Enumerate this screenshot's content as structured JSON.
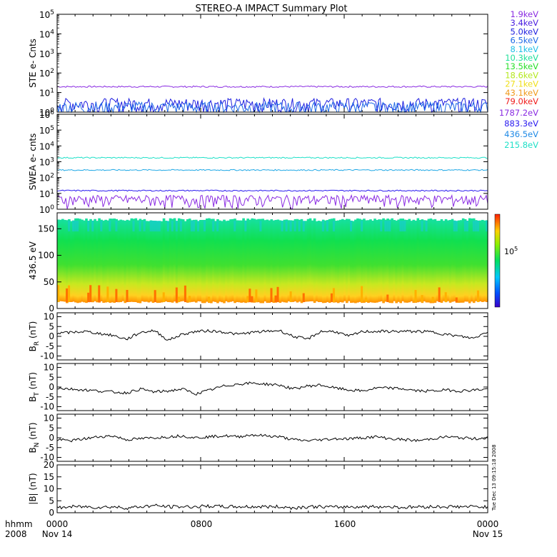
{
  "title": "STEREO-A IMPACT Summary Plot",
  "stamp": "Tue Dec 13 09:15:18 2008",
  "colors": {
    "purple": "#8a2be2",
    "blue": "#2a1bf0",
    "cyan": "#1fc0e6",
    "teal": "#1fe0c8",
    "bfield": "#000000"
  },
  "x_axis": {
    "label_line1": "hhmm",
    "label_line2": "2008",
    "ticks": [
      {
        "time": "0000",
        "date": "Nov 14"
      },
      {
        "time": "0800",
        "date": ""
      },
      {
        "time": "1600",
        "date": ""
      },
      {
        "time": "0000",
        "date": "Nov 15"
      }
    ]
  },
  "chart_data": [
    {
      "type": "line",
      "ylabel": "STE e- Cnts",
      "yscale": "log",
      "yticks": [
        "10^0",
        "10^1",
        "10^2",
        "10^3",
        "10^4",
        "10^5"
      ],
      "ylim": [
        1,
        100000
      ],
      "legend_placement": "right",
      "legend": [
        {
          "label": "1.9keV",
          "color": "#8a2be2"
        },
        {
          "label": "3.4keV",
          "color": "#4b1fe0"
        },
        {
          "label": "5.0keV",
          "color": "#1f1fe0"
        },
        {
          "label": "6.5keV",
          "color": "#1f6ae6"
        },
        {
          "label": "8.1keV",
          "color": "#1fc0e6"
        },
        {
          "label": "10.3keV",
          "color": "#1fe09a"
        },
        {
          "label": "13.5keV",
          "color": "#28e02a"
        },
        {
          "label": "18.6keV",
          "color": "#b4e81c"
        },
        {
          "label": "27.1keV",
          "color": "#f0e01c"
        },
        {
          "label": "43.1keV",
          "color": "#f09a1c"
        },
        {
          "label": "79.0keV",
          "color": "#f01c1c"
        }
      ],
      "series": [
        {
          "color": "#8a2be2",
          "level": 20
        },
        {
          "color": "#1f1fe0",
          "level": 2
        },
        {
          "color": "#1f6ae6",
          "level": 1.3
        }
      ]
    },
    {
      "type": "line",
      "ylabel": "SWEA e- cnts",
      "yscale": "log",
      "yticks": [
        "10^0",
        "10^1",
        "10^2",
        "10^3",
        "10^4",
        "10^5",
        "10^6"
      ],
      "ylim": [
        1,
        1000000
      ],
      "legend_placement": "right",
      "legend": [
        {
          "label": "1787.2eV",
          "color": "#8a2be2"
        },
        {
          "label": "883.3eV",
          "color": "#2a1bf0"
        },
        {
          "label": "436.5eV",
          "color": "#1f8ae6"
        },
        {
          "label": "215.8eV",
          "color": "#1fe0c8"
        }
      ],
      "series": [
        {
          "color": "#1fe0c8",
          "level": 1800
        },
        {
          "color": "#1fa8e6",
          "level": 300
        },
        {
          "color": "#2a1bf0",
          "level": 15
        },
        {
          "color": "#8a2be2",
          "level": 3
        }
      ]
    },
    {
      "type": "heatmap",
      "ylabel": "436.5 eV",
      "yticks": [
        "0",
        "50",
        "100",
        "150"
      ],
      "ylim": [
        0,
        180
      ],
      "colorbar_label": "10^5"
    },
    {
      "type": "line",
      "ylabel": "B_R (nT)",
      "yticks": [
        "-10",
        "-5",
        "0",
        "5",
        "10"
      ],
      "ylim": [
        -12,
        12
      ],
      "series": [
        {
          "color": "#000000",
          "nodes": [
            1.5,
            2,
            2.5,
            1.5,
            0.5,
            -1.5,
            2,
            3,
            -2,
            1,
            2.5,
            2.8,
            2.2,
            1,
            2,
            2.5,
            3,
            0,
            -1.5,
            2.5,
            2.5,
            0,
            2.5,
            2.5,
            2.5,
            2.5,
            2.5,
            2.2,
            1,
            0,
            -1,
            2.5
          ]
        }
      ]
    },
    {
      "type": "line",
      "ylabel": "B_T (nT)",
      "yticks": [
        "-10",
        "-5",
        "0",
        "5",
        "10"
      ],
      "ylim": [
        -12,
        12
      ],
      "series": [
        {
          "color": "#000000",
          "nodes": [
            -0.5,
            -1,
            -1.5,
            -2,
            -2.5,
            -3,
            -1,
            -2.5,
            -2,
            -1,
            -3.5,
            -1.5,
            0.5,
            1.5,
            2,
            1.5,
            1,
            -1,
            0.5,
            1,
            -0.5,
            -1.5,
            -2,
            -0.5,
            -0.5,
            -1,
            -2,
            -2,
            -1.5,
            -2,
            -1.5,
            -1
          ]
        }
      ]
    },
    {
      "type": "line",
      "ylabel": "B_N (nT)",
      "yticks": [
        "-10",
        "-5",
        "0",
        "5",
        "10"
      ],
      "ylim": [
        -12,
        12
      ],
      "series": [
        {
          "color": "#000000",
          "nodes": [
            -1,
            -1.5,
            -0.5,
            0.5,
            1,
            -1,
            -0.5,
            0,
            0.5,
            1,
            0,
            0.5,
            1,
            0.5,
            1.5,
            1,
            0.5,
            -1,
            -1.5,
            -1,
            -0.5,
            -0.5,
            0,
            0.5,
            -0.5,
            -1,
            -1.5,
            -0.5,
            0.5,
            0,
            -0.5,
            0
          ]
        }
      ]
    },
    {
      "type": "line",
      "ylabel": "|B| (nT)",
      "yticks": [
        "0",
        "5",
        "10",
        "15",
        "20"
      ],
      "ylim": [
        0,
        20
      ],
      "series": [
        {
          "color": "#000000",
          "nodes": [
            2,
            2.5,
            2.5,
            2.3,
            2.5,
            2,
            2.5,
            3,
            2.5,
            2.5,
            2.5,
            2.8,
            2.5,
            2.5,
            2.5,
            2.5,
            2.5,
            2,
            2.5,
            2.5,
            2.3,
            2.5,
            2.5,
            2.5,
            2.5,
            2.2,
            2.5,
            2.5,
            2.5,
            2.5,
            2.5,
            2.5
          ]
        }
      ]
    }
  ]
}
